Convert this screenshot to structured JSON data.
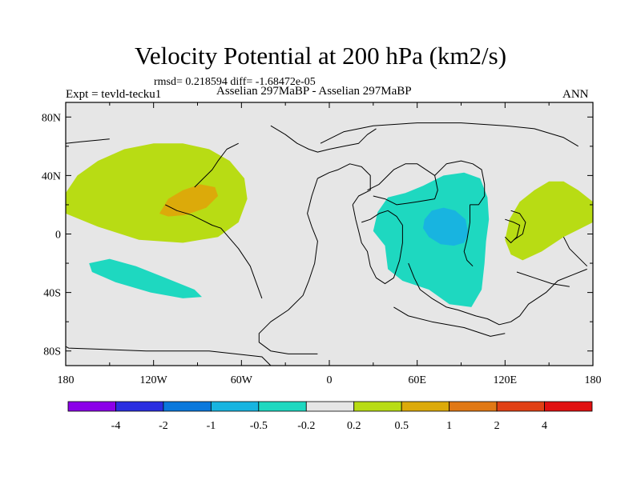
{
  "chart_data": {
    "type": "heatmap",
    "title": "Velocity Potential at 200 hPa (km2/s)",
    "stats": "rmsd= 0.218594  diff= -1.68472e-05",
    "left_string": "Expt = tevld-tecku1",
    "center_string": "Asselian 297MaBP - Asselian 297MaBP",
    "right_string": "ANN",
    "xlim": [
      -180,
      180
    ],
    "ylim": [
      -90,
      90
    ],
    "x_ticks": [
      {
        "value": -180,
        "label": "180"
      },
      {
        "value": -120,
        "label": "120W"
      },
      {
        "value": -60,
        "label": "60W"
      },
      {
        "value": 0,
        "label": "0"
      },
      {
        "value": 60,
        "label": "60E"
      },
      {
        "value": 120,
        "label": "120E"
      },
      {
        "value": 180,
        "label": "180"
      }
    ],
    "y_ticks": [
      {
        "value": 80,
        "label": "80N"
      },
      {
        "value": 40,
        "label": "40N"
      },
      {
        "value": 0,
        "label": "0"
      },
      {
        "value": -40,
        "label": "40S"
      },
      {
        "value": -80,
        "label": "80S"
      }
    ],
    "colorbar": {
      "levels": [
        "-4",
        "-2",
        "-1",
        "-0.5",
        "-0.2",
        "0.2",
        "0.5",
        "1",
        "2",
        "4"
      ],
      "colors": [
        "#8b00e8",
        "#2a2ee0",
        "#0a78dc",
        "#18b4e0",
        "#1ed8c0",
        "#e6e6e6",
        "#b8dc14",
        "#dcaa0a",
        "#e07814",
        "#e04014",
        "#e01010"
      ]
    },
    "regions": [
      {
        "name": "positive-0.2-0.5-north-pacific",
        "level": "0.2 to 0.5",
        "color": "#b8dc14",
        "points": [
          [
            -180,
            28
          ],
          [
            -172,
            40
          ],
          [
            -158,
            50
          ],
          [
            -140,
            58
          ],
          [
            -120,
            62
          ],
          [
            -100,
            62
          ],
          [
            -82,
            58
          ],
          [
            -68,
            50
          ],
          [
            -58,
            38
          ],
          [
            -56,
            24
          ],
          [
            -62,
            8
          ],
          [
            -76,
            -2
          ],
          [
            -100,
            -6
          ],
          [
            -130,
            -4
          ],
          [
            -158,
            5
          ],
          [
            -175,
            12
          ],
          [
            -180,
            14
          ]
        ]
      },
      {
        "name": "positive-0.5-1-north-pacific",
        "level": "0.5 to 1",
        "color": "#dcaa0a",
        "points": [
          [
            -116,
            14
          ],
          [
            -110,
            24
          ],
          [
            -100,
            30
          ],
          [
            -88,
            34
          ],
          [
            -78,
            32
          ],
          [
            -76,
            26
          ],
          [
            -84,
            18
          ],
          [
            -98,
            13
          ],
          [
            -110,
            12
          ]
        ]
      },
      {
        "name": "negative-0.2-0.5-south-pacific",
        "level": "-0.5 to -0.2",
        "color": "#1ed8c0",
        "points": [
          [
            -164,
            -20
          ],
          [
            -150,
            -17
          ],
          [
            -132,
            -22
          ],
          [
            -112,
            -30
          ],
          [
            -92,
            -38
          ],
          [
            -87,
            -43
          ],
          [
            -100,
            -44
          ],
          [
            -122,
            -40
          ],
          [
            -146,
            -33
          ],
          [
            -162,
            -26
          ]
        ]
      },
      {
        "name": "negative-0.2-0.5-indian-ocean",
        "level": "-0.5 to -0.2",
        "color": "#1ed8c0",
        "points": [
          [
            33,
            15
          ],
          [
            40,
            25
          ],
          [
            52,
            28
          ],
          [
            64,
            33
          ],
          [
            78,
            40
          ],
          [
            92,
            42
          ],
          [
            103,
            38
          ],
          [
            108,
            25
          ],
          [
            109,
            10
          ],
          [
            107,
            -5
          ],
          [
            106,
            -20
          ],
          [
            104,
            -38
          ],
          [
            97,
            -50
          ],
          [
            82,
            -48
          ],
          [
            68,
            -38
          ],
          [
            50,
            -32
          ],
          [
            40,
            -24
          ],
          [
            38,
            -8
          ],
          [
            30,
            2
          ]
        ]
      },
      {
        "name": "negative-0.5-1-indian-ocean",
        "level": "-1 to -0.5",
        "color": "#18b4e0",
        "points": [
          [
            65,
            10
          ],
          [
            70,
            16
          ],
          [
            78,
            18
          ],
          [
            86,
            16
          ],
          [
            93,
            10
          ],
          [
            95,
            0
          ],
          [
            92,
            -6
          ],
          [
            85,
            -8
          ],
          [
            76,
            -7
          ],
          [
            68,
            -2
          ],
          [
            64,
            4
          ]
        ]
      },
      {
        "name": "positive-0.2-0.5-west-pacific",
        "level": "0.2 to 0.5",
        "color": "#b8dc14",
        "points": [
          [
            180,
            22
          ],
          [
            170,
            30
          ],
          [
            160,
            36
          ],
          [
            150,
            36
          ],
          [
            140,
            30
          ],
          [
            130,
            22
          ],
          [
            123,
            10
          ],
          [
            120,
            -4
          ],
          [
            124,
            -14
          ],
          [
            132,
            -18
          ],
          [
            145,
            -12
          ],
          [
            160,
            -2
          ],
          [
            172,
            4
          ],
          [
            180,
            8
          ]
        ]
      }
    ],
    "coastlines": [
      [
        [
          -40,
          -90
        ],
        [
          -46,
          -84
        ],
        [
          -82,
          -80
        ],
        [
          -125,
          -80
        ],
        [
          -178,
          -78
        ],
        [
          -180,
          -77
        ]
      ],
      [
        [
          -180,
          62
        ],
        [
          -170,
          63
        ],
        [
          -160,
          64
        ],
        [
          -150,
          65
        ]
      ],
      [
        [
          -112,
          20
        ],
        [
          -104,
          16
        ],
        [
          -94,
          13
        ],
        [
          -88,
          10
        ],
        [
          -80,
          6
        ],
        [
          -74,
          4
        ],
        [
          -62,
          -10
        ],
        [
          -54,
          -22
        ],
        [
          -46,
          -44
        ]
      ],
      [
        [
          -92,
          32
        ],
        [
          -86,
          38
        ],
        [
          -80,
          44
        ],
        [
          -76,
          50
        ],
        [
          -70,
          58
        ],
        [
          -62,
          62
        ]
      ],
      [
        [
          -40,
          74
        ],
        [
          -30,
          68
        ],
        [
          -22,
          62
        ],
        [
          -14,
          58
        ],
        [
          -8,
          56
        ],
        [
          0,
          58
        ],
        [
          10,
          60
        ],
        [
          20,
          62
        ],
        [
          26,
          68
        ],
        [
          32,
          72
        ]
      ],
      [
        [
          -8,
          38
        ],
        [
          -12,
          26
        ],
        [
          -15,
          14
        ],
        [
          -12,
          5
        ],
        [
          -8,
          -5
        ],
        [
          -10,
          -20
        ],
        [
          -14,
          -32
        ],
        [
          -18,
          -42
        ],
        [
          -28,
          -52
        ],
        [
          -40,
          -60
        ],
        [
          -48,
          -68
        ],
        [
          -48,
          -74
        ],
        [
          -40,
          -80
        ],
        [
          -28,
          -82
        ],
        [
          -8,
          -82
        ]
      ],
      [
        [
          -8,
          38
        ],
        [
          0,
          42
        ],
        [
          6,
          44
        ],
        [
          14,
          48
        ],
        [
          22,
          46
        ],
        [
          28,
          40
        ],
        [
          28,
          30
        ],
        [
          20,
          26
        ],
        [
          16,
          20
        ]
      ],
      [
        [
          16,
          20
        ],
        [
          18,
          10
        ],
        [
          20,
          2
        ],
        [
          22,
          -6
        ],
        [
          26,
          -12
        ],
        [
          28,
          -22
        ],
        [
          32,
          -30
        ],
        [
          38,
          -34
        ],
        [
          44,
          -30
        ],
        [
          48,
          -18
        ],
        [
          50,
          -6
        ],
        [
          50,
          6
        ],
        [
          46,
          12
        ],
        [
          40,
          16
        ],
        [
          34,
          14
        ],
        [
          28,
          10
        ],
        [
          22,
          8
        ]
      ],
      [
        [
          26,
          30
        ],
        [
          34,
          34
        ],
        [
          38,
          38
        ],
        [
          44,
          44
        ],
        [
          52,
          48
        ],
        [
          60,
          48
        ],
        [
          66,
          44
        ],
        [
          72,
          40
        ],
        [
          74,
          30
        ],
        [
          72,
          24
        ],
        [
          60,
          22
        ],
        [
          46,
          20
        ],
        [
          38,
          24
        ],
        [
          30,
          26
        ]
      ],
      [
        [
          72,
          40
        ],
        [
          80,
          48
        ],
        [
          90,
          50
        ],
        [
          98,
          48
        ],
        [
          104,
          44
        ],
        [
          106,
          34
        ],
        [
          106,
          26
        ],
        [
          102,
          20
        ],
        [
          96,
          20
        ]
      ],
      [
        [
          -6,
          62
        ],
        [
          10,
          70
        ],
        [
          30,
          74
        ],
        [
          60,
          76
        ],
        [
          90,
          76
        ],
        [
          120,
          74
        ],
        [
          140,
          72
        ],
        [
          160,
          66
        ],
        [
          170,
          60
        ]
      ],
      [
        [
          96,
          20
        ],
        [
          96,
          8
        ],
        [
          94,
          -4
        ],
        [
          92,
          -12
        ],
        [
          94,
          -18
        ],
        [
          98,
          -22
        ]
      ],
      [
        [
          54,
          -20
        ],
        [
          58,
          -30
        ],
        [
          62,
          -38
        ],
        [
          70,
          -44
        ],
        [
          80,
          -50
        ],
        [
          88,
          -52
        ],
        [
          100,
          -56
        ],
        [
          108,
          -58
        ],
        [
          116,
          -62
        ],
        [
          124,
          -60
        ],
        [
          130,
          -56
        ],
        [
          136,
          -48
        ],
        [
          148,
          -40
        ],
        [
          156,
          -32
        ],
        [
          166,
          -28
        ],
        [
          176,
          -24
        ]
      ],
      [
        [
          44,
          -50
        ],
        [
          54,
          -56
        ],
        [
          70,
          -60
        ],
        [
          92,
          -64
        ],
        [
          110,
          -70
        ],
        [
          120,
          -68
        ]
      ],
      [
        [
          120,
          10
        ],
        [
          126,
          8
        ],
        [
          130,
          6
        ],
        [
          128,
          -2
        ],
        [
          124,
          -6
        ],
        [
          120,
          -2
        ]
      ],
      [
        [
          124,
          16
        ],
        [
          130,
          14
        ],
        [
          134,
          8
        ],
        [
          132,
          0
        ],
        [
          126,
          -4
        ]
      ],
      [
        [
          160,
          -2
        ],
        [
          164,
          -10
        ],
        [
          170,
          -16
        ],
        [
          176,
          -22
        ]
      ],
      [
        [
          128,
          -26
        ],
        [
          140,
          -30
        ],
        [
          152,
          -34
        ],
        [
          164,
          -36
        ]
      ]
    ]
  }
}
